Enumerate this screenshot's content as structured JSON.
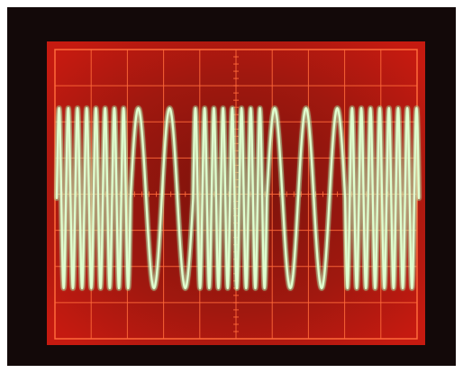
{
  "photo": {
    "subject": "oscilloscope-screen",
    "colors": {
      "background": "#ffffff",
      "bezel": "#130909",
      "screen": "#c51a10",
      "screen_center": "#7a120b",
      "grid": "#ff6a3a",
      "trace": "#dfffd0",
      "trace_glow": "#8dffb0"
    },
    "screen_grid": {
      "major_columns": 10,
      "major_rows": 8
    },
    "signal": {
      "pattern": "frequency-modulated-sine-burst",
      "segments": [
        {
          "cycles": 8.0,
          "period_scale": "short"
        },
        {
          "cycles": 1.0,
          "period_scale": "long"
        },
        {
          "cycles": 1.0,
          "period_scale": "long"
        },
        {
          "cycles": 8.0,
          "period_scale": "short"
        },
        {
          "cycles": 1.5,
          "period_scale": "long"
        },
        {
          "cycles": 1.0,
          "period_scale": "long"
        },
        {
          "cycles": 8.0,
          "period_scale": "short"
        }
      ]
    }
  }
}
